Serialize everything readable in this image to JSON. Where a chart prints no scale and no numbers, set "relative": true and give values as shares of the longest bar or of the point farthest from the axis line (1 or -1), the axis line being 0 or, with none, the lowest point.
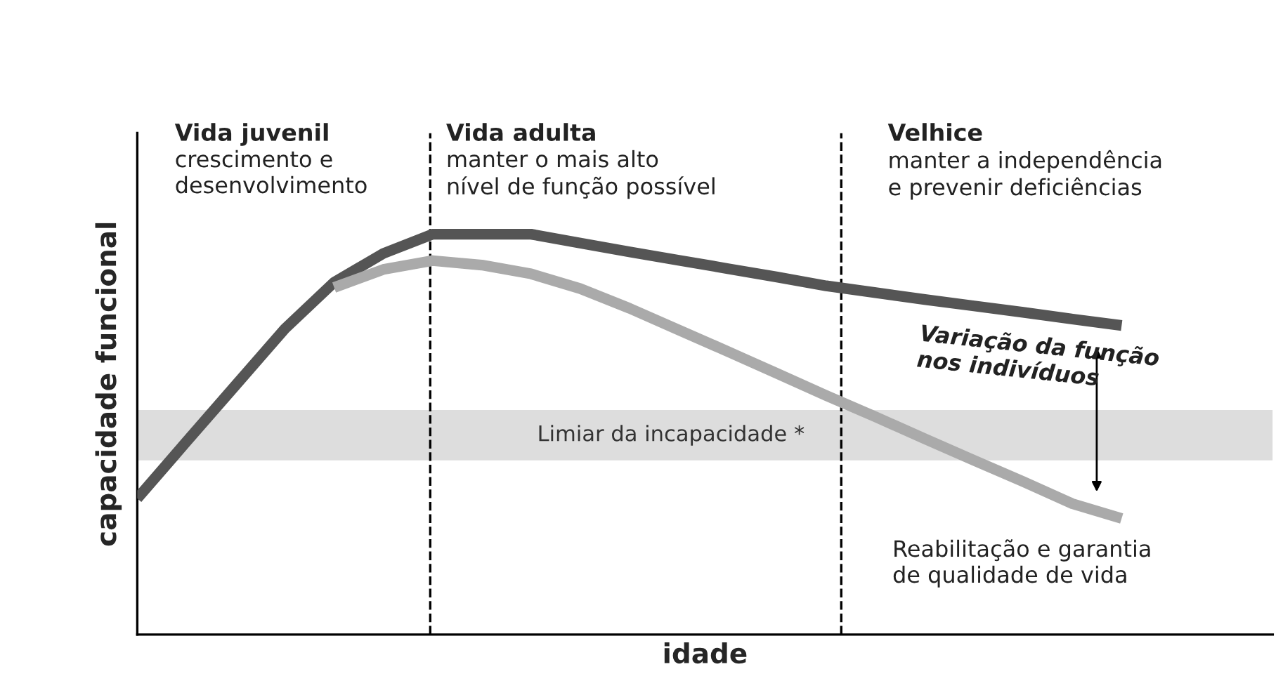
{
  "chart_data": {
    "type": "line",
    "relative": true,
    "xlabel": "idade",
    "ylabel": "capacidade funcional",
    "categories": [
      null,
      null,
      null,
      null,
      null,
      null,
      null,
      null,
      null,
      null,
      null,
      null,
      null,
      null,
      null,
      null,
      null,
      null,
      null,
      null,
      null
    ],
    "tick_labels": false,
    "grid": false,
    "legend": false,
    "marker": "none",
    "line_style": "solid",
    "series": [
      {
        "color": "#555555",
        "values": [
          0.34,
          0.482,
          0.623,
          0.764,
          0.88,
          0.952,
          1,
          1,
          1,
          0.978,
          0.956,
          0.935,
          0.914,
          0.893,
          0.871,
          0.854,
          0.837,
          0.821,
          0.805,
          0.788,
          0.772
        ]
      },
      {
        "color": "#aaaaaa",
        "values": [
          null,
          null,
          null,
          null,
          0.867,
          0.912,
          0.934,
          0.923,
          0.901,
          0.864,
          0.815,
          0.761,
          0.707,
          0.652,
          0.597,
          0.544,
          0.489,
          0.435,
          0.382,
          0.327,
          0.29
        ]
      }
    ],
    "bands": [
      {
        "axis": "y",
        "from": 0.435,
        "to": 0.561,
        "label": "Limiar da incapacidade *",
        "color": "#dddddd"
      }
    ],
    "annotations": [
      "Vida juvenil",
      "crescimento e\ndesenvolvimento",
      "Vida adulta",
      "manter o mais alto\nnível de função possível",
      "Velhice",
      "manter a independência\ne prevenir deficiências",
      "Variação da função\nnos indivíduos",
      "Reabilitação e garantia\nde qualidade de vida"
    ]
  }
}
